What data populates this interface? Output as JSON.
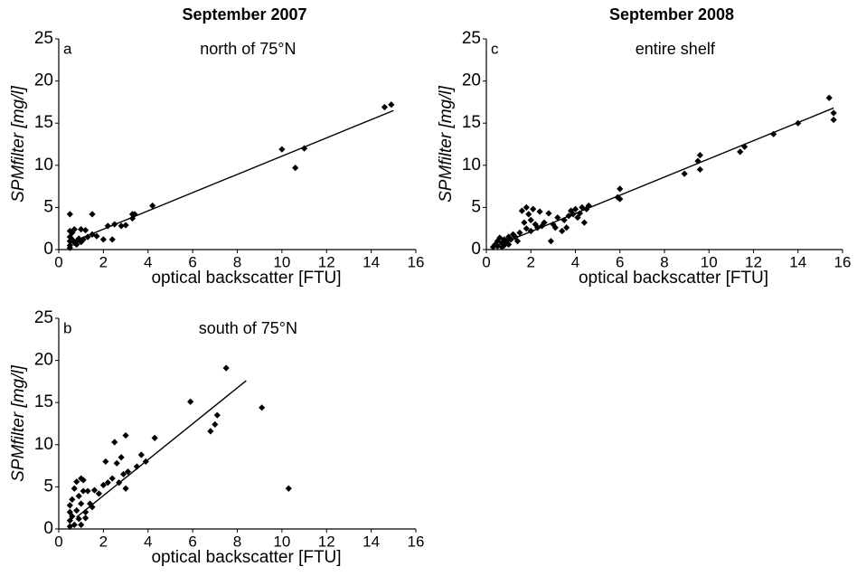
{
  "chart_data": [
    {
      "type": "scatter",
      "title": "September 2007",
      "panel": "a",
      "subtitle": "north of 75°N",
      "x_label": "optical backscatter [FTU]",
      "y_label": "SPMfilter [mg/l]",
      "xlim": [
        0,
        16
      ],
      "xticks": [
        0,
        2,
        4,
        6,
        8,
        10,
        12,
        14,
        16
      ],
      "ylim": [
        0,
        25
      ],
      "yticks": [
        0,
        5,
        10,
        15,
        20,
        25
      ],
      "series": [
        {
          "color": "#000000",
          "x": [
            0.5,
            0.5,
            0.5,
            0.5,
            0.5,
            0.5,
            0.6,
            0.6,
            0.7,
            0.7,
            0.8,
            0.8,
            0.9,
            1.0,
            1.0,
            1.1,
            1.2,
            1.3,
            1.5,
            1.5,
            1.7,
            2.0,
            2.2,
            2.4,
            2.5,
            2.8,
            3.0,
            3.3,
            3.3,
            3.4,
            4.2,
            10.0,
            10.6,
            11.0,
            14.6,
            14.9
          ],
          "values": [
            4.2,
            2.2,
            1.5,
            1.0,
            0.5,
            0.2,
            2.0,
            1.2,
            0.8,
            2.4,
            1.0,
            0.6,
            1.3,
            2.4,
            0.9,
            1.2,
            2.3,
            1.5,
            4.2,
            1.8,
            1.6,
            1.2,
            2.8,
            1.2,
            3.0,
            2.8,
            2.9,
            3.7,
            4.2,
            4.2,
            5.2,
            11.9,
            9.7,
            12.0,
            16.9,
            17.2
          ]
        }
      ],
      "fit": {
        "color": "#000000",
        "x": [
          0.5,
          15
        ],
        "values": [
          0.8,
          16.5
        ]
      }
    },
    {
      "type": "scatter",
      "panel": "b",
      "subtitle": "south of 75°N",
      "x_label": "optical backscatter [FTU]",
      "y_label": "SPMfilter [mg/l]",
      "xlim": [
        0,
        16
      ],
      "xticks": [
        0,
        2,
        4,
        6,
        8,
        10,
        12,
        14,
        16
      ],
      "ylim": [
        0,
        25
      ],
      "yticks": [
        0,
        5,
        10,
        15,
        20,
        25
      ],
      "series": [
        {
          "color": "#000000",
          "x": [
            0.5,
            0.5,
            0.5,
            0.5,
            0.6,
            0.6,
            0.7,
            0.7,
            0.8,
            0.8,
            0.9,
            0.9,
            1.0,
            1.0,
            1.0,
            1.1,
            1.1,
            1.2,
            1.2,
            1.3,
            1.4,
            1.5,
            1.6,
            1.8,
            2.0,
            2.1,
            2.2,
            2.4,
            2.5,
            2.6,
            2.7,
            2.8,
            2.9,
            3.0,
            3.0,
            3.1,
            3.5,
            3.7,
            3.9,
            4.3,
            5.9,
            6.8,
            7.0,
            7.1,
            7.5,
            9.1,
            10.3
          ],
          "values": [
            0.3,
            1.0,
            2.0,
            2.8,
            3.5,
            1.5,
            4.8,
            0.5,
            5.6,
            2.2,
            3.9,
            1.2,
            6.0,
            3.0,
            0.5,
            5.8,
            4.5,
            2.0,
            1.3,
            4.5,
            3.0,
            2.6,
            4.6,
            4.2,
            5.2,
            8.0,
            5.5,
            6.0,
            10.3,
            7.8,
            5.5,
            8.5,
            6.5,
            11.1,
            4.8,
            6.8,
            7.4,
            8.8,
            8.0,
            10.8,
            15.1,
            11.6,
            12.4,
            13.5,
            19.1,
            14.4,
            4.8
          ]
        }
      ],
      "fit": {
        "color": "#000000",
        "x": [
          0.8,
          8.4
        ],
        "values": [
          1.4,
          17.6
        ]
      }
    },
    {
      "type": "scatter",
      "title": "September 2008",
      "panel": "c",
      "subtitle": "entire shelf",
      "x_label": "optical backscatter [FTU]",
      "y_label": "SPMfilter [mg/l]",
      "xlim": [
        0,
        16
      ],
      "xticks": [
        0,
        2,
        4,
        6,
        8,
        10,
        12,
        14,
        16
      ],
      "ylim": [
        0,
        25
      ],
      "yticks": [
        0,
        5,
        10,
        15,
        20,
        25
      ],
      "series": [
        {
          "color": "#000000",
          "x": [
            0.3,
            0.4,
            0.5,
            0.5,
            0.6,
            0.7,
            0.7,
            0.8,
            0.8,
            0.9,
            1.0,
            1.0,
            1.1,
            1.2,
            1.3,
            1.4,
            1.5,
            1.6,
            1.7,
            1.8,
            1.8,
            1.9,
            2.0,
            2.0,
            2.1,
            2.2,
            2.3,
            2.4,
            2.5,
            2.6,
            2.8,
            2.9,
            3.0,
            3.1,
            3.2,
            3.4,
            3.5,
            3.6,
            3.7,
            3.8,
            3.9,
            4.0,
            4.1,
            4.2,
            4.3,
            4.4,
            4.5,
            4.6,
            5.9,
            6.0,
            6.0,
            8.9,
            9.5,
            9.6,
            9.6,
            11.4,
            11.6,
            12.9,
            14.0,
            15.4,
            15.6,
            15.6
          ],
          "values": [
            0.3,
            0.6,
            1.0,
            0.4,
            1.4,
            0.8,
            0.3,
            1.2,
            0.5,
            1.0,
            1.5,
            0.6,
            1.2,
            1.8,
            1.5,
            1.0,
            2.0,
            4.6,
            3.2,
            5.0,
            2.5,
            4.2,
            3.5,
            2.2,
            4.8,
            3.0,
            2.6,
            4.5,
            2.8,
            3.2,
            4.3,
            1.0,
            3.0,
            2.6,
            3.8,
            2.2,
            3.5,
            2.6,
            4.0,
            4.6,
            4.2,
            4.8,
            3.8,
            4.3,
            5.0,
            3.2,
            4.8,
            5.2,
            6.2,
            7.2,
            6.0,
            9.0,
            10.5,
            11.2,
            9.5,
            11.6,
            12.2,
            13.7,
            15.0,
            18.0,
            15.4,
            16.2
          ]
        }
      ],
      "fit": {
        "color": "#000000",
        "x": [
          0.3,
          15.6
        ],
        "values": [
          0.3,
          16.8
        ]
      }
    }
  ]
}
